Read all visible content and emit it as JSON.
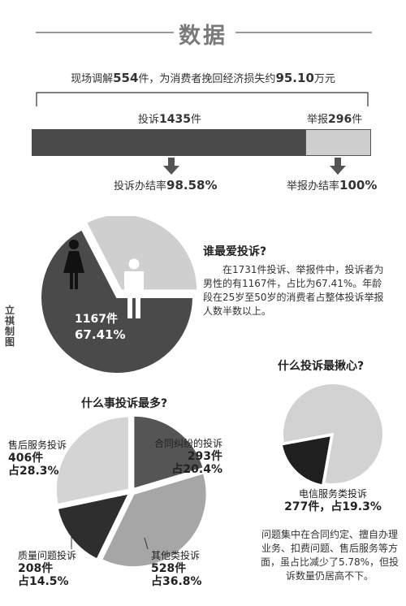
{
  "header": {
    "title": "数据"
  },
  "summary": {
    "prefix": "现场调解",
    "count": "554",
    "middle": "件，为消费者挽回经济损失约",
    "amount": "95.10",
    "unit": "万元"
  },
  "bars": {
    "complaints": {
      "label": "投诉",
      "value": "1435",
      "unit": "件",
      "rate_label": "投诉办结率",
      "rate": "98.58%"
    },
    "reports": {
      "label": "举报",
      "value": "296",
      "unit": "件",
      "rate_label": "举报办结率",
      "rate": "100%"
    }
  },
  "credit": "立祺制图",
  "gender": {
    "heading": "谁最爱投诉?",
    "paragraph": "在1731件投诉、举报件中，投诉者为男性的有1167件，占比为67.41%。年龄段在25岁至50岁的消费者占整体投诉举报人数半数以上。",
    "male_count": "1167件",
    "male_pct": "67.41%",
    "icons": {
      "female": "female-person-icon",
      "male": "male-person-icon"
    },
    "colors": {
      "male": "#4a4a4a",
      "female": "#cfcfcf"
    }
  },
  "categories_section": {
    "heading": "什么事投诉最多?"
  },
  "worry_section": {
    "heading": "什么投诉最揪心?",
    "label": "电信服务类投诉",
    "value": "277件，占19.3%",
    "paragraph": "问题集中在合同约定、擅自办理业务、扣费问题、售后服务等方面，虽占比减少了5.78%，但投诉数量仍居高不下。"
  },
  "chart_data": [
    {
      "type": "bar",
      "stacked": true,
      "categories": [
        "投诉",
        "举报"
      ],
      "values": [
        1435,
        296
      ],
      "colors": [
        "#4a4a4a",
        "#cfcfcf"
      ]
    },
    {
      "type": "pie",
      "labels": [
        "男性",
        "女性"
      ],
      "values": [
        67.41,
        32.59
      ],
      "colors": [
        "#4a4a4a",
        "#cfcfcf"
      ]
    },
    {
      "type": "pie",
      "labels": [
        "合同纠纷的投诉",
        "其他类投诉",
        "质量问题投诉",
        "售后服务投诉"
      ],
      "counts": [
        293,
        528,
        208,
        406
      ],
      "values": [
        20.4,
        36.8,
        14.5,
        28.3
      ],
      "display": [
        {
          "name": "合同纠纷的投诉",
          "count": "293件",
          "pct": "占20.4%"
        },
        {
          "name": "其他类投诉",
          "count": "528件",
          "pct": "占36.8%"
        },
        {
          "name": "质量问题投诉",
          "count": "208件",
          "pct": "占14.5%"
        },
        {
          "name": "售后服务投诉",
          "count": "406件",
          "pct": "占28.3%"
        }
      ],
      "colors": [
        "#555555",
        "#a6a6a6",
        "#2e2e2e",
        "#d4d4d4"
      ]
    },
    {
      "type": "pie",
      "labels": [
        "电信服务类投诉",
        "其他"
      ],
      "values": [
        19.3,
        80.7
      ],
      "colors": [
        "#1f1f1f",
        "#d2d2d2"
      ]
    }
  ]
}
